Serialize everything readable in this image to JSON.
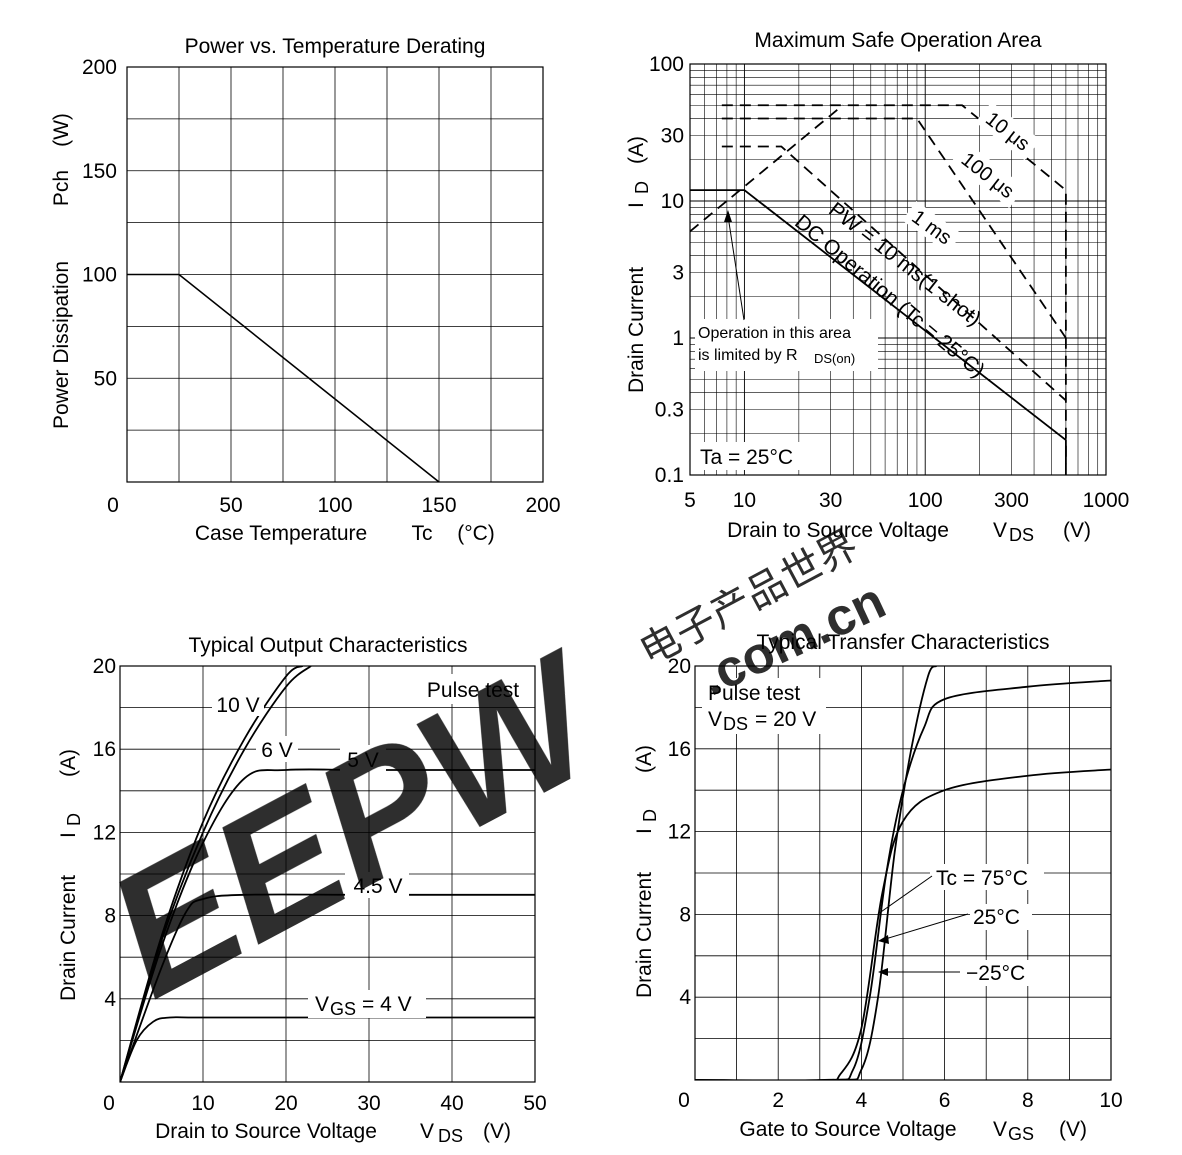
{
  "charts": {
    "power_derating": {
      "title": "Power vs. Temperature Derating",
      "xlabel": "Case Temperature",
      "xsym": "Tc",
      "xunit": "(°C)",
      "ylabel": "Power Dissipation",
      "ysym": "Pch",
      "yunit": "(W)",
      "xticks": [
        "0",
        "50",
        "100",
        "150",
        "200"
      ],
      "yticks": [
        "50",
        "100",
        "150",
        "200"
      ]
    },
    "safe_operation": {
      "title": "Maximum Safe Operation Area",
      "xlabel": "Drain to Source Voltage",
      "xsym": "V",
      "xsub": "DS",
      "xunit": "(V)",
      "ylabel": "Drain Current",
      "ysym": "I",
      "ysub": "D",
      "yunit": "(A)",
      "xticks": [
        "5",
        "10",
        "30",
        "100",
        "300",
        "1000"
      ],
      "yticks": [
        "0.1",
        "0.3",
        "1",
        "3",
        "10",
        "30",
        "100"
      ],
      "labels": {
        "us10": "10 μs",
        "us100": "100 μs",
        "ms1": "1 ms",
        "pw10": "PW = 10 ms(1 shot)",
        "dc": "DC Operation (Tc = 25°C)",
        "ta": "Ta = 25°C",
        "limit_line1": "Operation in this area",
        "limit_line2": "is limited by R",
        "limit_sub": "DS(on)"
      }
    },
    "output": {
      "title": "Typical Output Characteristics",
      "xlabel": "Drain to Source Voltage",
      "xsym": "V",
      "xsub": "DS",
      "xunit": "(V)",
      "ylabel": "Drain Current",
      "ysym": "I",
      "ysub": "D",
      "yunit": "(A)",
      "xticks": [
        "0",
        "10",
        "20",
        "30",
        "40",
        "50"
      ],
      "yticks": [
        "4",
        "8",
        "12",
        "16",
        "20"
      ],
      "note": "Pulse test",
      "curve_labels": {
        "v10": "10 V",
        "v6": "6 V",
        "v5": "5 V",
        "v45": "4.5 V",
        "vgs_pre": "V",
        "vgs_sub": "GS",
        "vgs_post": "= 4 V"
      }
    },
    "transfer": {
      "title": "Typical Transfer Characteristics",
      "xlabel": "Gate to Source Voltage",
      "xsym": "V",
      "xsub": "GS",
      "xunit": "(V)",
      "ylabel": "Drain Current",
      "ysym": "I",
      "ysub": "D",
      "yunit": "(A)",
      "xticks": [
        "0",
        "2",
        "4",
        "6",
        "8",
        "10"
      ],
      "yticks": [
        "4",
        "8",
        "12",
        "16",
        "20"
      ],
      "note1": "Pulse test",
      "note2_pre": "V",
      "note2_sub": "DS",
      "note2_post": "= 20 V",
      "curve_labels": {
        "t75": "Tc = 75°C",
        "t25": "25°C",
        "tm25": "−25°C"
      }
    }
  },
  "watermark": {
    "logo": "EEPW",
    "domain": ".com.cn",
    "cjk": "电子产品世界"
  },
  "chart_data": [
    {
      "type": "line",
      "title": "Power vs. Temperature Derating",
      "xlabel": "Case Temperature Tc (°C)",
      "ylabel": "Power Dissipation Pch (W)",
      "xlim": [
        0,
        200
      ],
      "ylim": [
        0,
        200
      ],
      "grid": true,
      "series": [
        {
          "x": [
            0,
            25,
            150
          ],
          "y": [
            100,
            100,
            0
          ]
        }
      ]
    },
    {
      "type": "line",
      "title": "Maximum Safe Operation Area",
      "xlabel": "Drain to Source Voltage VDS (V)",
      "ylabel": "Drain Current ID (A)",
      "xscale": "log",
      "yscale": "log",
      "xlim": [
        5,
        1000
      ],
      "ylim": [
        0.1,
        100
      ],
      "grid": true,
      "series": [
        {
          "name": "10 μs",
          "style": "dashed",
          "x": [
            7.5,
            160,
            600,
            600
          ],
          "y": [
            50,
            50,
            12,
            0.1
          ]
        },
        {
          "name": "100 μs",
          "style": "dashed",
          "x": [
            7.5,
            90,
            600
          ],
          "y": [
            40,
            40,
            1
          ]
        },
        {
          "name": "1 ms",
          "style": "dashed",
          "x": [
            7.5,
            16,
            600
          ],
          "y": [
            25,
            25,
            0.35
          ]
        },
        {
          "name": "PW = 10 ms(1 shot)",
          "style": "dashed",
          "x": [
            5,
            35
          ],
          "y": [
            6,
            50
          ]
        },
        {
          "name": "DC Operation (Tc = 25°C)",
          "style": "solid",
          "x": [
            5,
            10,
            600,
            600
          ],
          "y": [
            12,
            12,
            0.18,
            0.12
          ]
        }
      ]
    },
    {
      "type": "line",
      "title": "Typical Output Characteristics",
      "xlabel": "Drain to Source Voltage VDS (V)",
      "ylabel": "Drain Current ID (A)",
      "xlim": [
        0,
        50
      ],
      "ylim": [
        0,
        20
      ],
      "grid": true,
      "series": [
        {
          "name": "10 V",
          "x": [
            0,
            5,
            10,
            15,
            20,
            22
          ],
          "y": [
            0,
            7,
            12.5,
            16.5,
            19.5,
            20
          ]
        },
        {
          "name": "6 V",
          "x": [
            0,
            5,
            10,
            15,
            20,
            23
          ],
          "y": [
            0,
            6.8,
            12,
            16,
            19,
            20
          ]
        },
        {
          "name": "5 V",
          "x": [
            0,
            5,
            10,
            15,
            20,
            30,
            50
          ],
          "y": [
            0,
            6.5,
            11.5,
            14.6,
            15,
            15,
            15
          ]
        },
        {
          "name": "4.5 V",
          "x": [
            0,
            5,
            8,
            10,
            15,
            30,
            50
          ],
          "y": [
            0,
            5.5,
            8.2,
            8.8,
            9,
            9,
            9
          ]
        },
        {
          "name": "VGS = 4 V",
          "x": [
            0,
            2,
            4,
            6,
            10,
            30,
            50
          ],
          "y": [
            0,
            2,
            2.9,
            3.1,
            3.1,
            3.1,
            3.1
          ]
        }
      ]
    },
    {
      "type": "line",
      "title": "Typical Transfer Characteristics",
      "xlabel": "Gate to Source Voltage VGS (V)",
      "ylabel": "Drain Current ID (A)",
      "xlim": [
        0,
        10
      ],
      "ylim": [
        0,
        20
      ],
      "grid": true,
      "series": [
        {
          "name": "Tc = 75°C",
          "x": [
            0,
            3,
            3.5,
            4,
            4.5,
            5,
            6,
            8,
            10
          ],
          "y": [
            0,
            0,
            0.3,
            2.5,
            9,
            12.5,
            14,
            14.7,
            15
          ]
        },
        {
          "name": "25°C",
          "x": [
            0,
            3.2,
            3.8,
            4.2,
            4.6,
            5,
            5.5,
            6,
            8,
            10
          ],
          "y": [
            0,
            0,
            0.5,
            4,
            10,
            14,
            17,
            18.4,
            19,
            19.3
          ]
        },
        {
          "name": "−25°C",
          "x": [
            0,
            3.4,
            4,
            4.4,
            4.8,
            5.2,
            5.6,
            5.8
          ],
          "y": [
            0,
            0,
            0.5,
            4,
            11,
            16,
            19.5,
            20
          ]
        }
      ]
    }
  ]
}
